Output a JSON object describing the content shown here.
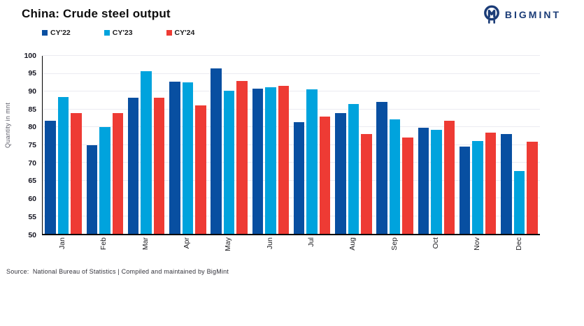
{
  "header": {
    "title": "China: Crude steel output",
    "brand": "BIGMINT",
    "brand_color": "#1b3c77"
  },
  "chart_data": {
    "type": "bar",
    "title": "China: Crude steel output",
    "categories": [
      "Jan",
      "Feb",
      "Mar",
      "Apr",
      "May",
      "Jun",
      "Jul",
      "Aug",
      "Sep",
      "Oct",
      "Nov",
      "Dec"
    ],
    "series": [
      {
        "name": "CY'22",
        "color": "#084fa1",
        "values": [
          81.7,
          75.0,
          88.3,
          92.8,
          96.5,
          90.7,
          81.4,
          83.9,
          87.0,
          79.8,
          74.5,
          78.0
        ]
      },
      {
        "name": "CY'23",
        "color": "#00a3dd",
        "values": [
          88.5,
          80.1,
          95.7,
          92.6,
          90.2,
          91.1,
          90.6,
          86.4,
          82.2,
          79.2,
          76.1,
          67.6
        ]
      },
      {
        "name": "CY'24",
        "color": "#ee3b34",
        "values": [
          83.9,
          84.0,
          88.3,
          86.0,
          92.9,
          91.6,
          83.0,
          78.1,
          77.0,
          81.8,
          78.4,
          75.8
        ]
      }
    ],
    "xlabel": "",
    "ylabel": "Quantity in mnt",
    "ylim": [
      50,
      100
    ],
    "ytick_step": 5,
    "yticks": [
      50,
      55,
      60,
      65,
      70,
      75,
      80,
      85,
      90,
      95,
      100
    ],
    "grid": true,
    "legend_position": "top"
  },
  "footer": {
    "source": "Source:  National Bureau of Statistics | Compiled and maintained by BigMint"
  }
}
